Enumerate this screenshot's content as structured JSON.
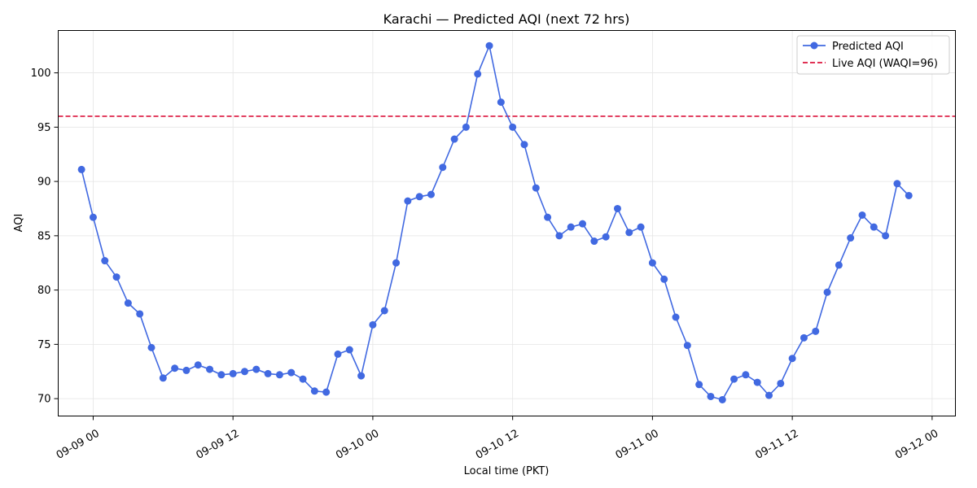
{
  "chart_data": {
    "type": "line",
    "title": "Karachi — Predicted AQI (next 72 hrs)",
    "xlabel": "Local time (PKT)",
    "ylabel": "AQI",
    "x_axis": {
      "type": "datetime",
      "range": [
        "2025-09-08 21:00",
        "2025-09-12 02:00"
      ],
      "ticks": [
        {
          "value": "2025-09-09 00:00",
          "label": "09-09 00"
        },
        {
          "value": "2025-09-09 12:00",
          "label": "09-09 12"
        },
        {
          "value": "2025-09-10 00:00",
          "label": "09-10 00"
        },
        {
          "value": "2025-09-10 12:00",
          "label": "09-10 12"
        },
        {
          "value": "2025-09-11 00:00",
          "label": "09-11 00"
        },
        {
          "value": "2025-09-11 12:00",
          "label": "09-11 12"
        },
        {
          "value": "2025-09-12 00:00",
          "label": "09-12 00"
        }
      ]
    },
    "y_axis": {
      "range": [
        68.4,
        103.9
      ],
      "ticks": [
        70,
        75,
        80,
        85,
        90,
        95,
        100
      ]
    },
    "grid": true,
    "legend": {
      "placement": "top-right",
      "entries": [
        "Predicted AQI",
        "Live AQI (WAQI=96)"
      ]
    },
    "series": [
      {
        "name": "Predicted AQI",
        "style": "line-with-markers",
        "color": "#4169e1",
        "x": [
          "2025-09-08 23:00",
          "2025-09-09 00:00",
          "2025-09-09 01:00",
          "2025-09-09 02:00",
          "2025-09-09 03:00",
          "2025-09-09 04:00",
          "2025-09-09 05:00",
          "2025-09-09 06:00",
          "2025-09-09 07:00",
          "2025-09-09 08:00",
          "2025-09-09 09:00",
          "2025-09-09 10:00",
          "2025-09-09 11:00",
          "2025-09-09 12:00",
          "2025-09-09 13:00",
          "2025-09-09 14:00",
          "2025-09-09 15:00",
          "2025-09-09 16:00",
          "2025-09-09 17:00",
          "2025-09-09 18:00",
          "2025-09-09 19:00",
          "2025-09-09 20:00",
          "2025-09-09 21:00",
          "2025-09-09 22:00",
          "2025-09-09 23:00",
          "2025-09-10 00:00",
          "2025-09-10 01:00",
          "2025-09-10 02:00",
          "2025-09-10 03:00",
          "2025-09-10 04:00",
          "2025-09-10 05:00",
          "2025-09-10 06:00",
          "2025-09-10 07:00",
          "2025-09-10 08:00",
          "2025-09-10 09:00",
          "2025-09-10 10:00",
          "2025-09-10 11:00",
          "2025-09-10 12:00",
          "2025-09-10 13:00",
          "2025-09-10 14:00",
          "2025-09-10 15:00",
          "2025-09-10 16:00",
          "2025-09-10 17:00",
          "2025-09-10 18:00",
          "2025-09-10 19:00",
          "2025-09-10 20:00",
          "2025-09-10 21:00",
          "2025-09-10 22:00",
          "2025-09-10 23:00",
          "2025-09-11 00:00",
          "2025-09-11 01:00",
          "2025-09-11 02:00",
          "2025-09-11 03:00",
          "2025-09-11 04:00",
          "2025-09-11 05:00",
          "2025-09-11 06:00",
          "2025-09-11 07:00",
          "2025-09-11 08:00",
          "2025-09-11 09:00",
          "2025-09-11 10:00",
          "2025-09-11 11:00",
          "2025-09-11 12:00",
          "2025-09-11 13:00",
          "2025-09-11 14:00",
          "2025-09-11 15:00",
          "2025-09-11 16:00",
          "2025-09-11 17:00",
          "2025-09-11 18:00",
          "2025-09-11 19:00",
          "2025-09-11 20:00",
          "2025-09-11 21:00",
          "2025-09-11 22:00"
        ],
        "values": [
          91.1,
          86.7,
          82.7,
          81.2,
          78.8,
          77.8,
          74.7,
          71.9,
          72.8,
          72.6,
          73.1,
          72.7,
          72.2,
          72.3,
          72.5,
          72.7,
          72.3,
          72.2,
          72.4,
          71.8,
          70.7,
          70.6,
          74.1,
          74.5,
          72.1,
          76.8,
          78.1,
          82.5,
          88.2,
          88.6,
          88.8,
          91.3,
          93.9,
          95.0,
          99.9,
          102.5,
          97.3,
          95.0,
          93.4,
          89.4,
          86.7,
          85.0,
          85.8,
          86.1,
          84.5,
          84.9,
          87.5,
          85.3,
          85.8,
          82.5,
          81.0,
          77.5,
          74.9,
          71.3,
          70.2,
          69.9,
          71.8,
          72.2,
          71.5,
          70.3,
          71.4,
          73.7,
          75.6,
          76.2,
          79.8,
          82.3,
          84.8,
          86.9,
          85.8,
          85.0,
          89.8,
          88.7
        ]
      },
      {
        "name": "Live AQI (WAQI=96)",
        "style": "dashed-horizontal-line",
        "color": "#dc143c",
        "value": 96
      }
    ]
  }
}
